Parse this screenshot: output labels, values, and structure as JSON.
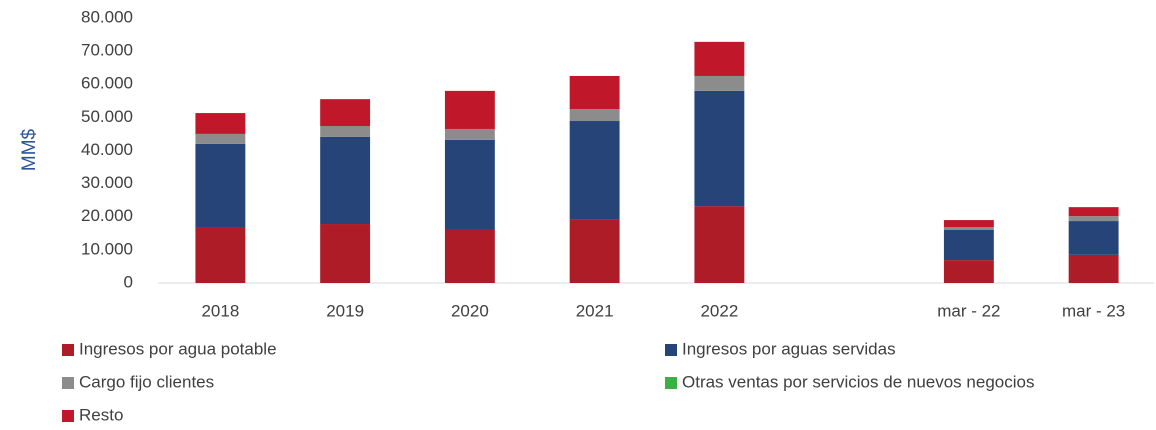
{
  "chart_data": {
    "type": "stacked_bar",
    "y_label": "MM$",
    "categories": [
      "2018",
      "2019",
      "2020",
      "2021",
      "2022",
      null,
      "mar - 22",
      "mar - 23"
    ],
    "series": [
      {
        "name": "Ingresos por agua potable",
        "color": "#ae1c28",
        "values": [
          16900,
          17800,
          16300,
          19300,
          23200,
          null,
          6900,
          8500
        ]
      },
      {
        "name": "Ingresos por aguas servidas",
        "color": "#264478",
        "values": [
          25100,
          26300,
          26900,
          29600,
          34800,
          null,
          9100,
          10200
        ]
      },
      {
        "name": "Cargo fijo clientes",
        "color": "#8c8c8c",
        "values": [
          3000,
          3300,
          3300,
          3600,
          4500,
          null,
          900,
          1500
        ]
      },
      {
        "name": "Otras ventas por servicios de nuevos negocios",
        "color": "#3cb043",
        "values": [
          0,
          0,
          0,
          0,
          0,
          null,
          0,
          0
        ]
      },
      {
        "name": "Resto",
        "color": "#c0182a",
        "values": [
          6300,
          8100,
          11500,
          10000,
          10300,
          null,
          2100,
          2700
        ]
      }
    ],
    "ylim": [
      0,
      80000
    ],
    "yticks": [
      0,
      {
        "value": 10000,
        "label": "10.000"
      },
      {
        "value": 20000,
        "label": "20.000"
      },
      {
        "value": 30000,
        "label": "30.000"
      },
      {
        "value": 40000,
        "label": "40.000"
      },
      {
        "value": 50000,
        "label": "50.000"
      },
      {
        "value": 60000,
        "label": "60.000"
      },
      {
        "value": 70000,
        "label": "70.000"
      },
      {
        "value": 80000,
        "label": "80.000"
      }
    ],
    "grid": false
  }
}
